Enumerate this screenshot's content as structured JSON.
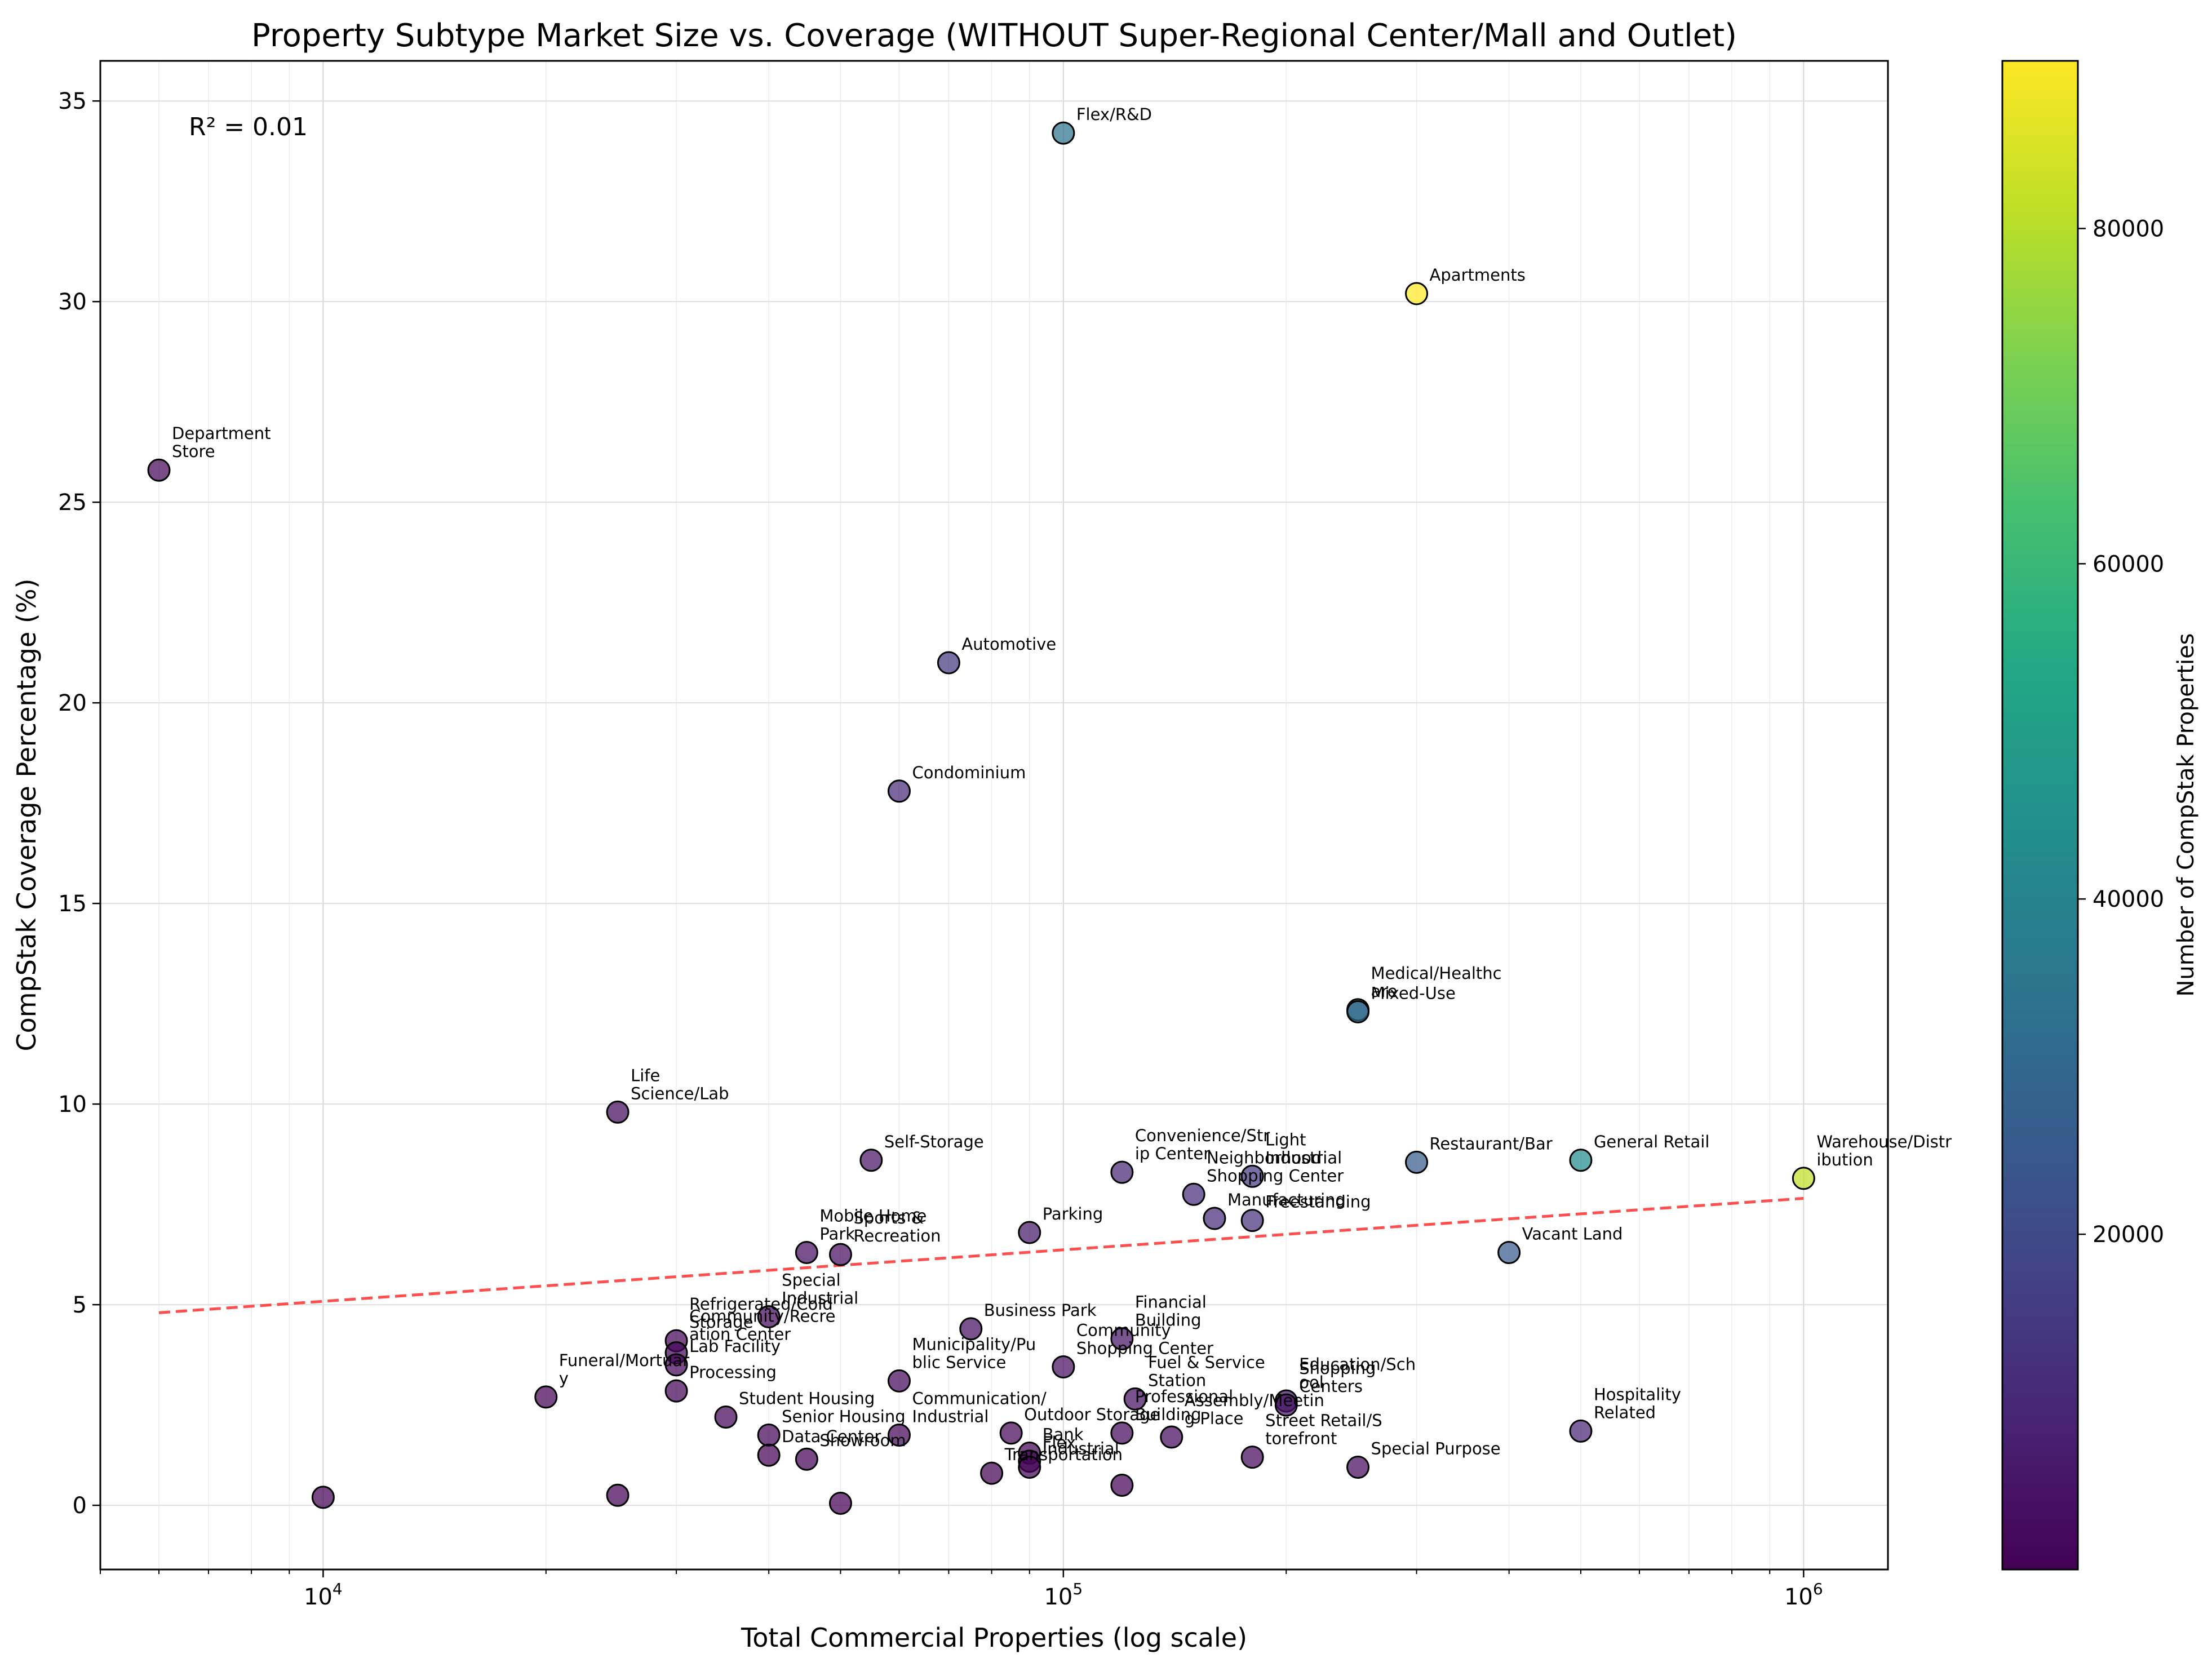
{
  "chart_data": {
    "type": "scatter",
    "title": "Property Subtype Market Size vs. Coverage (WITHOUT Super-Regional Center/Mall and Outlet)",
    "xlabel": "Total Commercial Properties (log scale)",
    "ylabel": "CompStak Coverage Percentage (%)",
    "x_scale": "log",
    "xlim": [
      5000,
      1300000
    ],
    "ylim": [
      -1.6,
      36
    ],
    "x_ticks": [
      {
        "value": 10000,
        "label": "10",
        "exp": "4"
      },
      {
        "value": 100000,
        "label": "10",
        "exp": "5"
      },
      {
        "value": 1000000,
        "label": "10",
        "exp": "6"
      }
    ],
    "y_ticks": [
      {
        "value": 0,
        "label": "0"
      },
      {
        "value": 5,
        "label": "5"
      },
      {
        "value": 10,
        "label": "10"
      },
      {
        "value": 15,
        "label": "15"
      },
      {
        "value": 20,
        "label": "20"
      },
      {
        "value": 25,
        "label": "25"
      },
      {
        "value": 30,
        "label": "30"
      },
      {
        "value": 35,
        "label": "35"
      }
    ],
    "grid": true,
    "annotation": "R² = 0.01",
    "trendline": {
      "x": [
        6000,
        1000000
      ],
      "y": [
        4.8,
        7.65
      ],
      "color": "#ff3b3b"
    },
    "colorbar": {
      "label": "Number of CompStak Properties",
      "min": 0,
      "max": 90000,
      "ticks": [
        {
          "value": 20000,
          "label": "20000"
        },
        {
          "value": 40000,
          "label": "40000"
        },
        {
          "value": 60000,
          "label": "60000"
        },
        {
          "value": 80000,
          "label": "80000"
        }
      ]
    },
    "points": [
      {
        "x": 6000,
        "y": 25.8,
        "c": 1500,
        "label": "Department\nStore"
      },
      {
        "x": 10000,
        "y": 0.2,
        "c": 20,
        "label": ""
      },
      {
        "x": 20000,
        "y": 2.7,
        "c": 540,
        "label": "Funeral/Mortuar\ny"
      },
      {
        "x": 25000,
        "y": 9.8,
        "c": 2450,
        "label": "Life\nScience/Lab"
      },
      {
        "x": 25000,
        "y": 0.25,
        "c": 60,
        "label": ""
      },
      {
        "x": 30000,
        "y": 4.1,
        "c": 1230,
        "label": "Refrigerated/Cold\nStorage"
      },
      {
        "x": 30000,
        "y": 3.8,
        "c": 1140,
        "label": "Community/Recre\nation Center"
      },
      {
        "x": 30000,
        "y": 3.5,
        "c": 1050,
        "label": "Lab Facility"
      },
      {
        "x": 30000,
        "y": 2.85,
        "c": 860,
        "label": "Processing"
      },
      {
        "x": 35000,
        "y": 2.2,
        "c": 770,
        "label": "Student Housing"
      },
      {
        "x": 40000,
        "y": 4.7,
        "c": 1880,
        "label": "Special\nIndustrial"
      },
      {
        "x": 40000,
        "y": 1.75,
        "c": 700,
        "label": "Senior Housing"
      },
      {
        "x": 40000,
        "y": 1.25,
        "c": 500,
        "label": "Data Center"
      },
      {
        "x": 45000,
        "y": 6.3,
        "c": 2840,
        "label": "Mobile Home\nPark"
      },
      {
        "x": 45000,
        "y": 1.15,
        "c": 520,
        "label": "Showroom"
      },
      {
        "x": 50000,
        "y": 6.25,
        "c": 3130,
        "label": "Sports &\nRecreation"
      },
      {
        "x": 50000,
        "y": 0.05,
        "c": 25,
        "label": ""
      },
      {
        "x": 55000,
        "y": 8.6,
        "c": 4730,
        "label": "Self-Storage"
      },
      {
        "x": 60000,
        "y": 17.8,
        "c": 10680,
        "label": "Condominium"
      },
      {
        "x": 60000,
        "y": 3.1,
        "c": 1860,
        "label": "Municipality/Pu\nblic Service"
      },
      {
        "x": 60000,
        "y": 1.75,
        "c": 1050,
        "label": "Communication/\nIndustrial"
      },
      {
        "x": 70000,
        "y": 21.0,
        "c": 14700,
        "label": "Automotive"
      },
      {
        "x": 75000,
        "y": 4.4,
        "c": 3300,
        "label": "Business Park"
      },
      {
        "x": 80000,
        "y": 0.8,
        "c": 640,
        "label": "Transportation"
      },
      {
        "x": 85000,
        "y": 1.8,
        "c": 1530,
        "label": "Outdoor Storage"
      },
      {
        "x": 90000,
        "y": 6.8,
        "c": 6120,
        "label": "Parking"
      },
      {
        "x": 90000,
        "y": 1.3,
        "c": 1170,
        "label": "Bank"
      },
      {
        "x": 90000,
        "y": 1.1,
        "c": 990,
        "label": "Flex"
      },
      {
        "x": 90000,
        "y": 0.95,
        "c": 860,
        "label": "Industrial"
      },
      {
        "x": 100000,
        "y": 34.2,
        "c": 34200,
        "label": "Flex/R&D"
      },
      {
        "x": 100000,
        "y": 3.45,
        "c": 3450,
        "label": "Community\nShopping Center"
      },
      {
        "x": 120000,
        "y": 8.3,
        "c": 9960,
        "label": "Convenience/Str\nip Center"
      },
      {
        "x": 120000,
        "y": 4.15,
        "c": 4980,
        "label": "Financial\nBuilding"
      },
      {
        "x": 120000,
        "y": 1.8,
        "c": 2160,
        "label": "Professional\nBuilding"
      },
      {
        "x": 120000,
        "y": 0.5,
        "c": 600,
        "label": ""
      },
      {
        "x": 125000,
        "y": 2.65,
        "c": 3310,
        "label": "Fuel & Service\nStation"
      },
      {
        "x": 140000,
        "y": 1.7,
        "c": 2380,
        "label": "Assembly/Meetin\ng Place"
      },
      {
        "x": 150000,
        "y": 7.75,
        "c": 11630,
        "label": "Neighborhood\nShopping Center"
      },
      {
        "x": 160000,
        "y": 7.15,
        "c": 11440,
        "label": "Manufacturing"
      },
      {
        "x": 180000,
        "y": 8.2,
        "c": 14760,
        "label": "Light\nIndustrial"
      },
      {
        "x": 180000,
        "y": 7.1,
        "c": 12780,
        "label": "Freestanding"
      },
      {
        "x": 180000,
        "y": 1.2,
        "c": 2160,
        "label": "Street Retail/S\ntorefront"
      },
      {
        "x": 200000,
        "y": 2.6,
        "c": 5200,
        "label": "Education/Sch\nool"
      },
      {
        "x": 200000,
        "y": 2.5,
        "c": 5000,
        "label": "Shopping\nCenters"
      },
      {
        "x": 250000,
        "y": 12.35,
        "c": 30900,
        "label": "Medical/Healthc\nare"
      },
      {
        "x": 250000,
        "y": 12.3,
        "c": 30750,
        "label": "Mixed-Use"
      },
      {
        "x": 250000,
        "y": 0.95,
        "c": 2380,
        "label": "Special Purpose"
      },
      {
        "x": 300000,
        "y": 30.2,
        "c": 90600,
        "label": "Apartments"
      },
      {
        "x": 300000,
        "y": 8.55,
        "c": 25650,
        "label": "Restaurant/Bar"
      },
      {
        "x": 400000,
        "y": 6.3,
        "c": 25200,
        "label": "Vacant Land"
      },
      {
        "x": 500000,
        "y": 8.6,
        "c": 43000,
        "label": "General Retail"
      },
      {
        "x": 500000,
        "y": 1.85,
        "c": 9250,
        "label": "Hospitality\nRelated"
      },
      {
        "x": 1000000,
        "y": 8.15,
        "c": 81500,
        "label": "Warehouse/Distr\nibution"
      }
    ]
  }
}
